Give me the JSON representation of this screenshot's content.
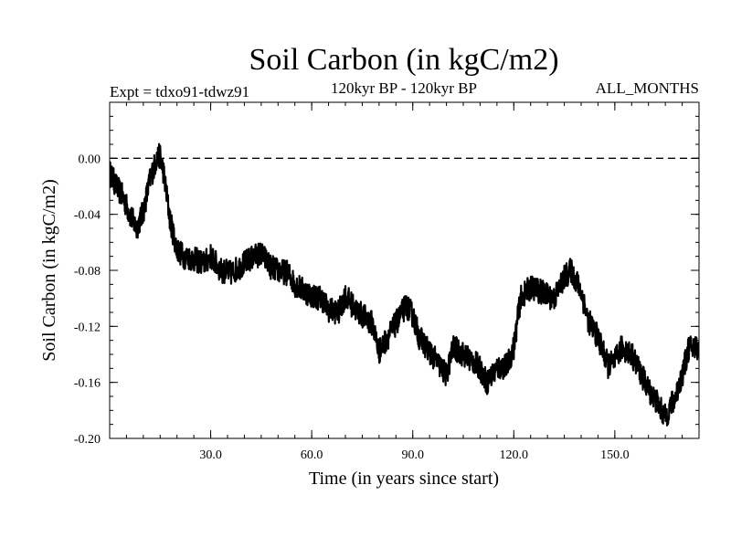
{
  "chart_data": {
    "type": "line",
    "title": "Soil Carbon (in kgC/m2)",
    "expt_label": "Expt = tdxo91-tdwz91",
    "period_label": "120kyr BP - 120kyr BP",
    "season_label": "ALL_MONTHS",
    "xlabel": "Time (in years since start)",
    "ylabel": "Soil Carbon (in kgC/m2)",
    "xlim": [
      0,
      175
    ],
    "ylim": [
      -0.2,
      0.04
    ],
    "xticks": [
      30,
      60,
      90,
      120,
      150
    ],
    "xtick_labels": [
      "30.0",
      "60.0",
      "90.0",
      "120.0",
      "150.0"
    ],
    "yticks": [
      0.0,
      -0.04,
      -0.08,
      -0.12,
      -0.16,
      -0.2
    ],
    "ytick_labels": [
      "0.00",
      "-0.04",
      "-0.08",
      "-0.12",
      "-0.16",
      "-0.20"
    ],
    "reference_line": 0.0,
    "series": [
      {
        "name": "Soil Carbon",
        "x": [
          0,
          2,
          4,
          6,
          8,
          10,
          12,
          14,
          15,
          16,
          18,
          20,
          22,
          25,
          28,
          30,
          33,
          36,
          40,
          43,
          45,
          48,
          50,
          53,
          55,
          58,
          60,
          63,
          65,
          68,
          70,
          73,
          75,
          78,
          80,
          82,
          85,
          88,
          90,
          92,
          95,
          98,
          100,
          102,
          105,
          108,
          110,
          112,
          115,
          118,
          120,
          122,
          125,
          128,
          130,
          132,
          135,
          137,
          140,
          142,
          145,
          148,
          150,
          152,
          155,
          158,
          160,
          162,
          165,
          168,
          170,
          172,
          175
        ],
        "y": [
          -0.01,
          -0.02,
          -0.028,
          -0.04,
          -0.05,
          -0.038,
          -0.015,
          0.0,
          0.002,
          -0.01,
          -0.045,
          -0.065,
          -0.07,
          -0.072,
          -0.075,
          -0.07,
          -0.08,
          -0.082,
          -0.075,
          -0.07,
          -0.068,
          -0.078,
          -0.08,
          -0.082,
          -0.09,
          -0.095,
          -0.098,
          -0.1,
          -0.108,
          -0.11,
          -0.098,
          -0.108,
          -0.112,
          -0.118,
          -0.138,
          -0.13,
          -0.118,
          -0.105,
          -0.112,
          -0.128,
          -0.138,
          -0.148,
          -0.155,
          -0.135,
          -0.14,
          -0.145,
          -0.15,
          -0.16,
          -0.15,
          -0.148,
          -0.135,
          -0.1,
          -0.092,
          -0.095,
          -0.098,
          -0.1,
          -0.085,
          -0.08,
          -0.095,
          -0.115,
          -0.128,
          -0.148,
          -0.145,
          -0.135,
          -0.14,
          -0.155,
          -0.165,
          -0.172,
          -0.185,
          -0.17,
          -0.155,
          -0.135,
          -0.135
        ]
      }
    ]
  }
}
